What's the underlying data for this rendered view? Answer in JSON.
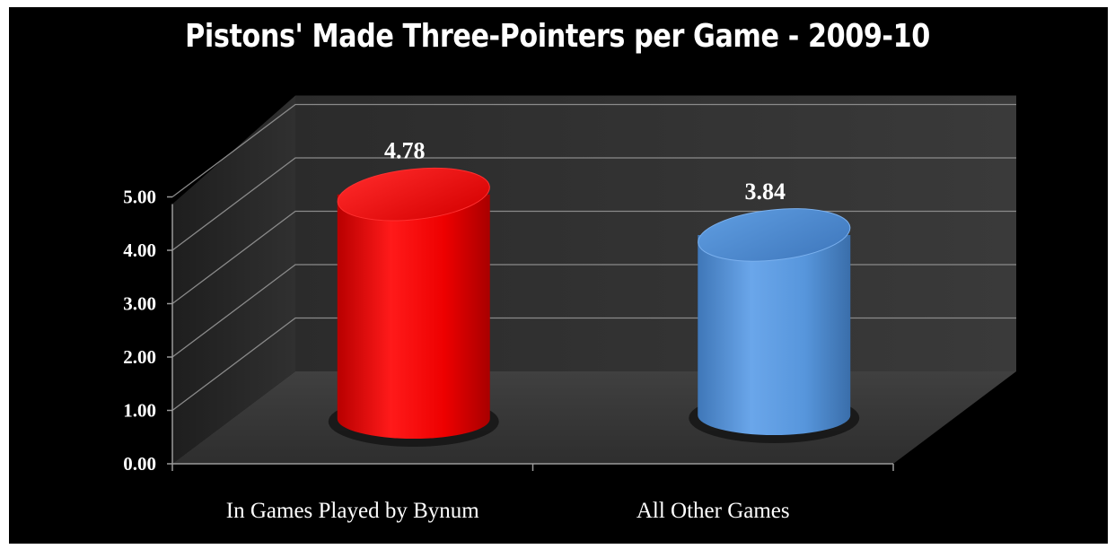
{
  "chart_data": {
    "type": "bar",
    "title": "Pistons' Made Three-Pointers per Game - 2009-10",
    "categories": [
      "In Games Played by Bynum",
      "All Other Games"
    ],
    "values": [
      4.78,
      3.84
    ],
    "value_labels": [
      "4.78",
      "3.84"
    ],
    "yticks": [
      "0.00",
      "1.00",
      "2.00",
      "3.00",
      "4.00",
      "5.00"
    ],
    "ylim": [
      0,
      5
    ],
    "grid": true,
    "colors": [
      "#ee0000",
      "#4f8fd6"
    ],
    "background": "#000000"
  }
}
